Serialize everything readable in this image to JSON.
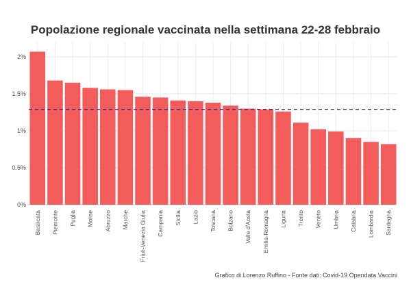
{
  "chart_data": {
    "type": "bar",
    "title": "Popolazione regionale vaccinata nella settimana 22-28 febbraio",
    "caption": "Grafico di Lorenzo Ruffino - Fonte dati: Covid-19 Opendata Vaccini",
    "xlabel": "",
    "ylabel": "",
    "ylim": [
      0,
      2.2
    ],
    "yticks": [
      0,
      0.5,
      1,
      1.5,
      2
    ],
    "ytick_labels": [
      "0%",
      "0.5%",
      "1%",
      "1.5%",
      "2%"
    ],
    "grid": true,
    "categories": [
      "Basilicata",
      "Piemonte",
      "Puglia",
      "Molise",
      "Abruzzo",
      "Marche",
      "Friuli-Venezia Giulia",
      "Campania",
      "Sicilia",
      "Lazio",
      "Toscana",
      "Bolzano",
      "Valle d'Aosta",
      "Emilia-Romagna",
      "Liguria",
      "Trento",
      "Veneto",
      "Umbria",
      "Calabria",
      "Lombardia",
      "Sardegna"
    ],
    "values": [
      2.07,
      1.68,
      1.65,
      1.58,
      1.56,
      1.55,
      1.46,
      1.45,
      1.41,
      1.4,
      1.38,
      1.34,
      1.3,
      1.29,
      1.26,
      1.11,
      1.02,
      0.99,
      0.9,
      0.85,
      0.82
    ],
    "reference_line": 1.29,
    "bar_color": "#f25c5a",
    "line_color": "#2e2e8a"
  }
}
